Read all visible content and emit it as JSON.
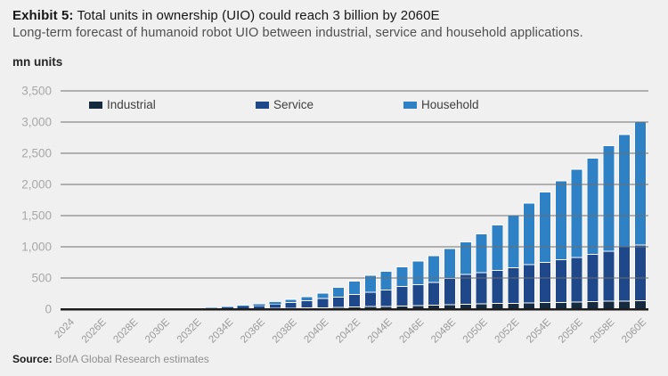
{
  "header": {
    "exhibit_label": "Exhibit 5:",
    "title": "Total units in ownership (UIO) could reach 3 billion by 2060E",
    "subtitle": "Long-term forecast of humanoid robot UIO between industrial, service and household applications."
  },
  "units_label": "mn units",
  "footer": {
    "source_label": "Source:",
    "source_text": "BofA Global Research estimates"
  },
  "colors": {
    "background": "#f0f0f0",
    "gridline": "#6f6f6f",
    "zero_axis": "#1c1c1c",
    "y_tick_text": "#a8a8a8",
    "x_tick_text": "#9a9a9a",
    "legend_text": "#3f3f3f",
    "segment_border": "#ffffff"
  },
  "chart_data": {
    "type": "bar",
    "stacked": true,
    "title": "Exhibit 5: Total units in ownership (UIO) could reach 3 billion by 2060E",
    "subtitle": "Long-term forecast of humanoid robot UIO between industrial, service and household applications.",
    "xlabel": "",
    "ylabel": "mn units",
    "ylim": [
      0,
      3500
    ],
    "y_tick_step": 500,
    "y_tick_labels": [
      "0",
      "500",
      "1,000",
      "1,500",
      "2,000",
      "2,500",
      "3,000",
      "3,500"
    ],
    "grid": "horizontal gridlines drawn over bars",
    "legend_position": "top inside plot area",
    "years": [
      2024,
      2025,
      2026,
      2027,
      2028,
      2029,
      2030,
      2031,
      2032,
      2033,
      2034,
      2035,
      2036,
      2037,
      2038,
      2039,
      2040,
      2041,
      2042,
      2043,
      2044,
      2045,
      2046,
      2047,
      2048,
      2049,
      2050,
      2051,
      2052,
      2053,
      2054,
      2055,
      2056,
      2057,
      2058,
      2059,
      2060
    ],
    "x_tick_labels": [
      "2024",
      "2026E",
      "2028E",
      "2030E",
      "2032E",
      "2034E",
      "2036E",
      "2038E",
      "2040E",
      "2042E",
      "2044E",
      "2046E",
      "2048E",
      "2050E",
      "2052E",
      "2054E",
      "2056E",
      "2058E",
      "2060E"
    ],
    "x_tick_every": 2,
    "series": [
      {
        "name": "Industrial",
        "color": "#15293f",
        "values": [
          0,
          0,
          0,
          1,
          1,
          2,
          2,
          3,
          4,
          4,
          5,
          7,
          9,
          12,
          15,
          18,
          22,
          28,
          35,
          40,
          45,
          52,
          58,
          64,
          72,
          80,
          86,
          90,
          95,
          100,
          105,
          110,
          115,
          120,
          126,
          132,
          138
        ]
      },
      {
        "name": "Service",
        "color": "#1e4889",
        "values": [
          0,
          0,
          0,
          0,
          1,
          1,
          2,
          4,
          6,
          11,
          24,
          37,
          51,
          68,
          92,
          117,
          148,
          162,
          198,
          230,
          265,
          313,
          337,
          366,
          423,
          475,
          499,
          530,
          570,
          615,
          645,
          680,
          715,
          760,
          804,
          868,
          892
        ]
      },
      {
        "name": "Household",
        "color": "#2e81c4",
        "values": [
          0,
          0,
          0,
          0,
          0,
          0,
          1,
          2,
          4,
          7,
          8,
          13,
          20,
          32,
          48,
          65,
          90,
          158,
          217,
          275,
          295,
          315,
          375,
          430,
          475,
          525,
          620,
          730,
          835,
          985,
          1130,
          1270,
          1410,
          1540,
          1690,
          1800,
          1970
        ]
      }
    ]
  }
}
